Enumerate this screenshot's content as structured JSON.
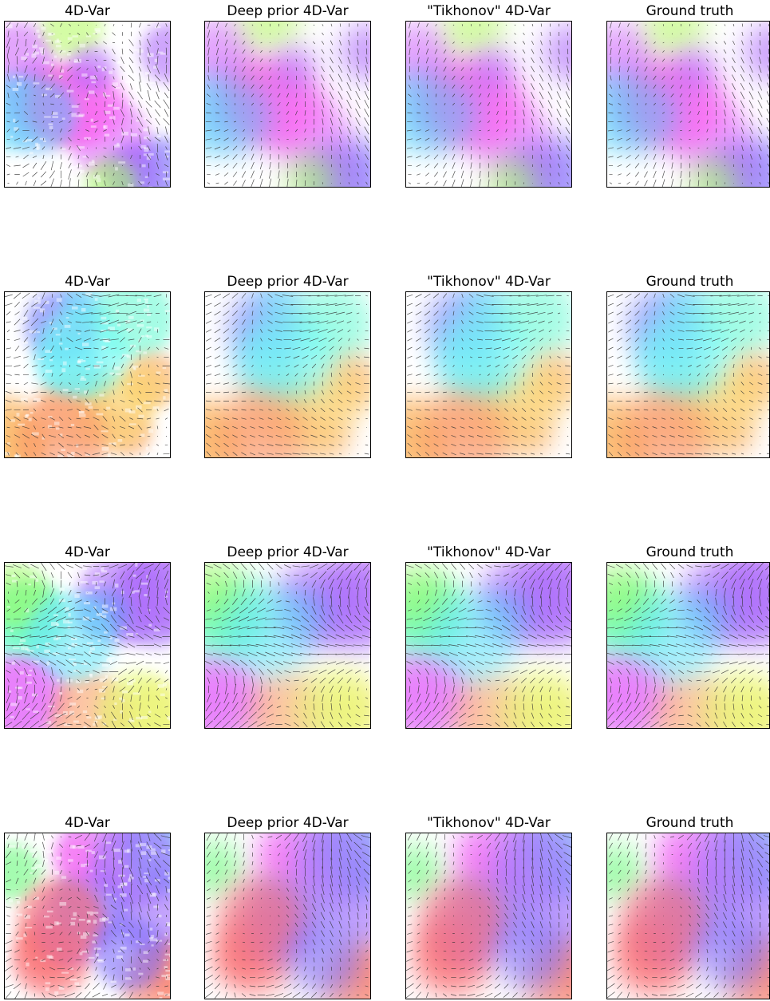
{
  "rows": [
    [
      "4D-Var",
      "Deep prior 4D-Var",
      "\"Tikhonov\" 4D-Var",
      "Ground truth"
    ],
    [
      "4D-Var",
      "Deep prior 4D-Var",
      "\"Tikhonov\" 4D-Var",
      "Ground truth"
    ],
    [
      "4D-Var",
      "Deep prior 4D-Var",
      "\"Tikhonov\" 4D-Var",
      "Ground truth"
    ],
    [
      "4D-Var",
      "Deep prior 4D-Var",
      "\"Tikhonov\" 4D-Var",
      "Ground truth"
    ]
  ]
}
